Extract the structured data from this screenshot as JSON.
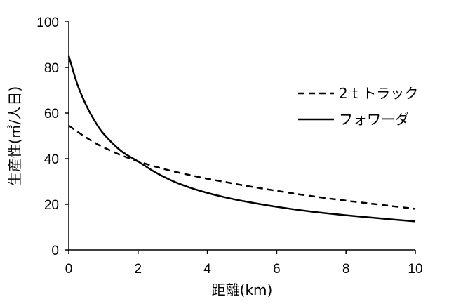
{
  "chart_data": {
    "type": "line",
    "title": "",
    "xlabel": "距離(km)",
    "ylabel": "生産性(㎥/人日)",
    "xlim": [
      0,
      10
    ],
    "ylim": [
      0,
      100
    ],
    "xticks": [
      "0",
      "2",
      "4",
      "6",
      "8",
      "10"
    ],
    "yticks": [
      "0",
      "20",
      "40",
      "60",
      "80",
      "100"
    ],
    "grid": false,
    "legend_position": "right",
    "x": [
      0,
      0.25,
      0.5,
      0.75,
      1,
      1.5,
      2,
      2.5,
      3,
      3.5,
      4,
      4.5,
      5,
      6,
      7,
      8,
      9,
      10
    ],
    "series": [
      {
        "name": "2 t トラック",
        "style": "dashed",
        "color": "#000000",
        "values": [
          54.5,
          51.8,
          49.3,
          47.0,
          45.0,
          41.6,
          38.8,
          36.5,
          34.5,
          32.8,
          31.2,
          29.8,
          28.4,
          25.9,
          23.6,
          21.6,
          19.8,
          18.0
        ]
      },
      {
        "name": "フォワーダ",
        "style": "solid",
        "color": "#000000",
        "values": [
          85.0,
          72.5,
          63.5,
          56.5,
          51.0,
          43.5,
          38.8,
          34.0,
          30.2,
          27.3,
          25.0,
          23.1,
          21.5,
          18.9,
          16.8,
          15.2,
          13.8,
          12.5
        ]
      }
    ]
  }
}
